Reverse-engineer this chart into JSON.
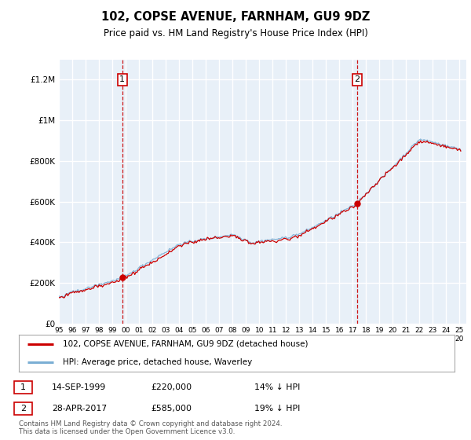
{
  "title": "102, COPSE AVENUE, FARNHAM, GU9 9DZ",
  "subtitle": "Price paid vs. HM Land Registry's House Price Index (HPI)",
  "legend_line1": "102, COPSE AVENUE, FARNHAM, GU9 9DZ (detached house)",
  "legend_line2": "HPI: Average price, detached house, Waverley",
  "transaction1_date": "14-SEP-1999",
  "transaction1_price": 220000,
  "transaction1_note": "14% ↓ HPI",
  "transaction2_date": "28-APR-2017",
  "transaction2_price": 585000,
  "transaction2_note": "19% ↓ HPI",
  "footer": "Contains HM Land Registry data © Crown copyright and database right 2024.\nThis data is licensed under the Open Government Licence v3.0.",
  "red_color": "#cc0000",
  "blue_color": "#7bafd4",
  "background_color": "#ffffff",
  "chart_bg": "#e8f0f8",
  "grid_color": "#ffffff",
  "ylim": [
    0,
    1300000
  ],
  "yticks": [
    0,
    200000,
    400000,
    600000,
    800000,
    1000000,
    1200000
  ],
  "start_year": 1995,
  "end_year": 2025
}
